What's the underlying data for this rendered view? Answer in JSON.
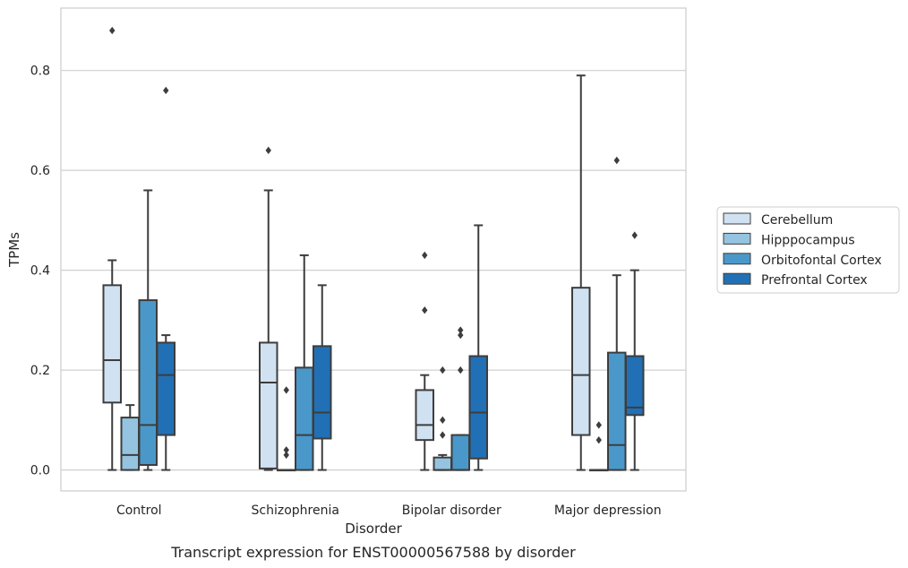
{
  "chart_data": {
    "type": "box",
    "xlabel": "Disorder",
    "ylabel": "TPMs",
    "caption": "Transcript expression for ENST00000567588 by disorder",
    "ylim": [
      -0.042,
      0.925
    ],
    "yticks": [
      0.0,
      0.2,
      0.4,
      0.6,
      0.8
    ],
    "ytick_labels": [
      "0.0",
      "0.2",
      "0.4",
      "0.6",
      "0.8"
    ],
    "grid": "horizontal",
    "legend_position": "right",
    "categories": [
      "Control",
      "Schizophrenia",
      "Bipolar disorder",
      "Major depression"
    ],
    "series": [
      {
        "name": "Cerebellum",
        "color": "#d0e1f2",
        "boxes": [
          {
            "whisker_low": 0.0,
            "q1": 0.135,
            "median": 0.22,
            "q3": 0.37,
            "whisker_high": 0.42,
            "outliers": [
              0.88
            ]
          },
          {
            "whisker_low": 0.0,
            "q1": 0.003,
            "median": 0.175,
            "q3": 0.255,
            "whisker_high": 0.56,
            "outliers": [
              0.64
            ]
          },
          {
            "whisker_low": 0.0,
            "q1": 0.06,
            "median": 0.09,
            "q3": 0.16,
            "whisker_high": 0.19,
            "outliers": [
              0.32,
              0.43
            ]
          },
          {
            "whisker_low": 0.0,
            "q1": 0.07,
            "median": 0.19,
            "q3": 0.365,
            "whisker_high": 0.79,
            "outliers": []
          }
        ]
      },
      {
        "name": "Hipppocampus",
        "color": "#94c4df",
        "boxes": [
          {
            "whisker_low": 0.0,
            "q1": 0.0,
            "median": 0.03,
            "q3": 0.105,
            "whisker_high": 0.13,
            "outliers": []
          },
          {
            "whisker_low": 0.0,
            "q1": 0.0,
            "median": 0.0,
            "q3": 0.0,
            "whisker_high": 0.0,
            "outliers": [
              0.03,
              0.04,
              0.16
            ]
          },
          {
            "whisker_low": 0.0,
            "q1": 0.0,
            "median": 0.0,
            "q3": 0.025,
            "whisker_high": 0.03,
            "outliers": [
              0.07,
              0.1,
              0.2
            ]
          },
          {
            "whisker_low": 0.0,
            "q1": 0.0,
            "median": 0.0,
            "q3": 0.0,
            "whisker_high": 0.0,
            "outliers": [
              0.06,
              0.09
            ]
          }
        ]
      },
      {
        "name": "Orbitofontal Cortex",
        "color": "#4a98c9",
        "boxes": [
          {
            "whisker_low": 0.0,
            "q1": 0.01,
            "median": 0.09,
            "q3": 0.34,
            "whisker_high": 0.56,
            "outliers": []
          },
          {
            "whisker_low": 0.0,
            "q1": 0.0,
            "median": 0.07,
            "q3": 0.205,
            "whisker_high": 0.43,
            "outliers": []
          },
          {
            "whisker_low": 0.0,
            "q1": 0.0,
            "median": 0.0,
            "q3": 0.07,
            "whisker_high": 0.07,
            "outliers": [
              0.2,
              0.27,
              0.28
            ]
          },
          {
            "whisker_low": 0.0,
            "q1": 0.0,
            "median": 0.05,
            "q3": 0.235,
            "whisker_high": 0.39,
            "outliers": [
              0.62
            ]
          }
        ]
      },
      {
        "name": "Prefrontal Cortex",
        "color": "#2170b5",
        "boxes": [
          {
            "whisker_low": 0.0,
            "q1": 0.07,
            "median": 0.19,
            "q3": 0.255,
            "whisker_high": 0.27,
            "outliers": [
              0.76
            ]
          },
          {
            "whisker_low": 0.0,
            "q1": 0.063,
            "median": 0.115,
            "q3": 0.248,
            "whisker_high": 0.37,
            "outliers": []
          },
          {
            "whisker_low": 0.0,
            "q1": 0.023,
            "median": 0.115,
            "q3": 0.228,
            "whisker_high": 0.49,
            "outliers": []
          },
          {
            "whisker_low": 0.0,
            "q1": 0.11,
            "median": 0.125,
            "q3": 0.228,
            "whisker_high": 0.4,
            "outliers": [
              0.47
            ]
          }
        ]
      }
    ]
  }
}
